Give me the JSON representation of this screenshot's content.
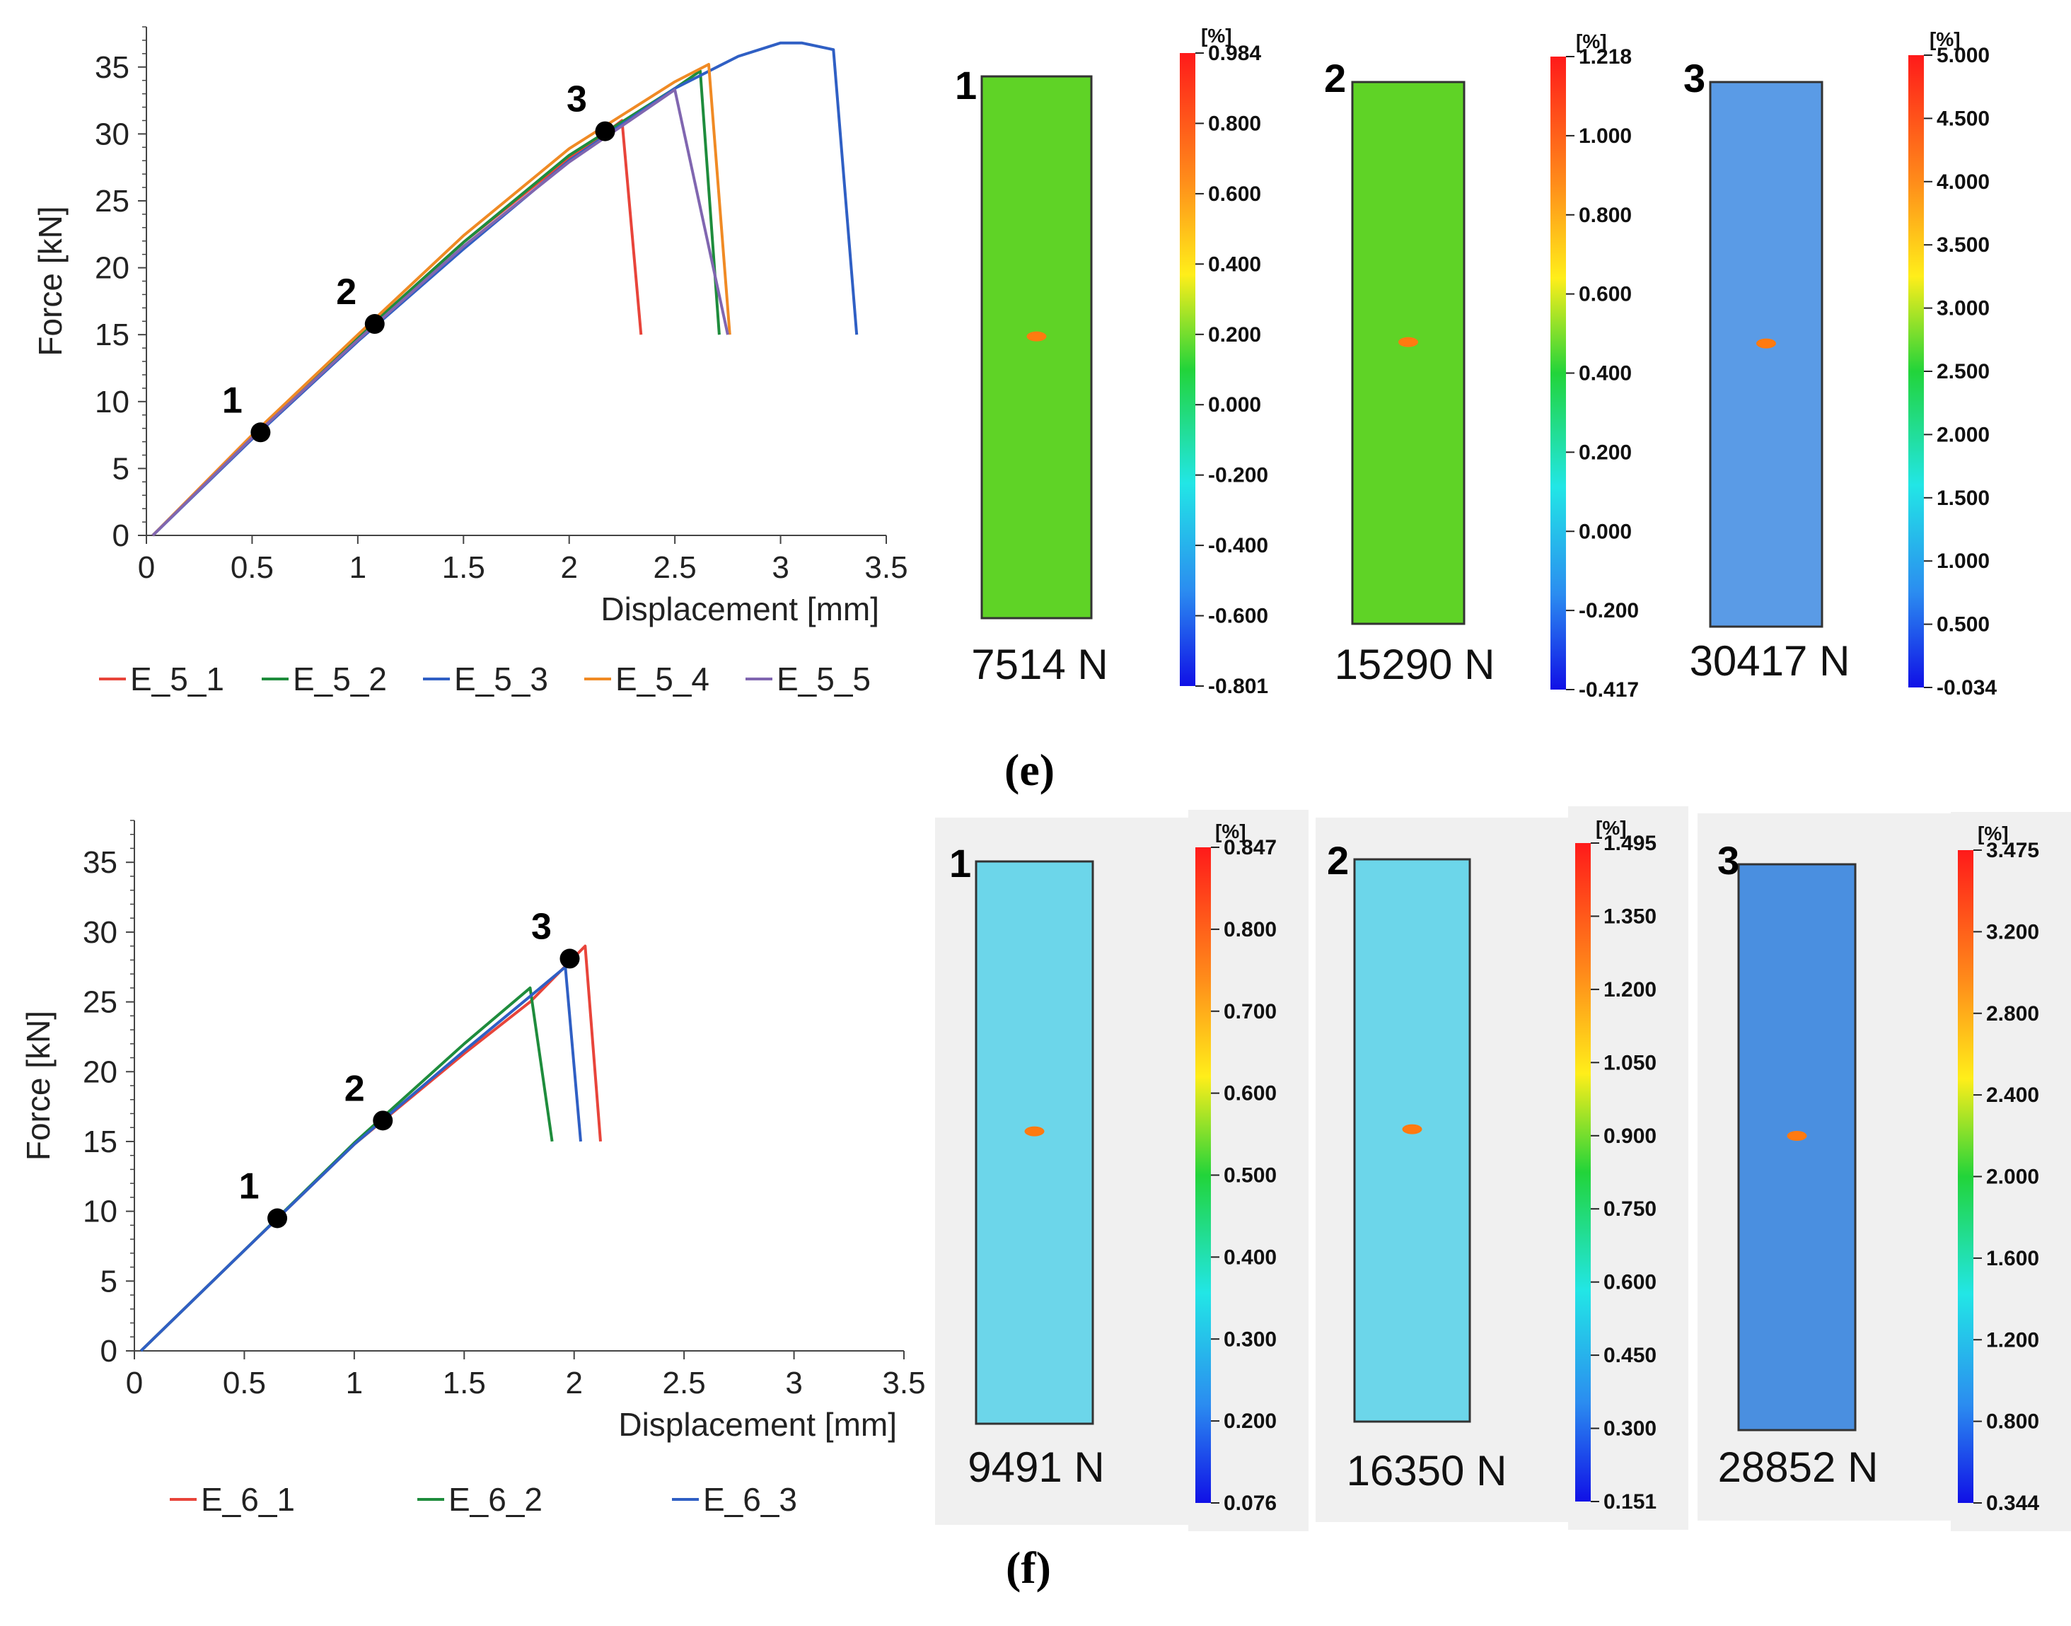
{
  "chart_data": [
    {
      "type": "line",
      "panel": "(e)",
      "ylabel": "Force [kN]",
      "xlabel": "Displacement [mm]",
      "xlim": [
        0,
        3.5
      ],
      "ylim": [
        0,
        38
      ],
      "xticks": [
        "0",
        "0.5",
        "1",
        "1.5",
        "2",
        "2.5",
        "3",
        "3.5"
      ],
      "yticks": [
        "0",
        "5",
        "10",
        "15",
        "20",
        "25",
        "30",
        "35"
      ],
      "series": [
        {
          "name": "E_5_1",
          "color": "#e8443a",
          "x": [
            0.03,
            0.5,
            1.0,
            1.5,
            2.0,
            2.2,
            2.25,
            2.34
          ],
          "y": [
            0,
            7.4,
            14.8,
            21.9,
            28.2,
            30.4,
            31.0,
            15.0
          ]
        },
        {
          "name": "E_5_2",
          "color": "#1e8c3c",
          "x": [
            0.03,
            0.5,
            1.0,
            1.5,
            2.0,
            2.5,
            2.62,
            2.71
          ],
          "y": [
            0,
            7.4,
            14.8,
            21.9,
            28.4,
            33.4,
            34.7,
            15.0
          ]
        },
        {
          "name": "E_5_3",
          "color": "#2f5fc4",
          "x": [
            0.03,
            0.5,
            1.0,
            1.5,
            2.0,
            2.5,
            2.8,
            3.0,
            3.1,
            3.25,
            3.36
          ],
          "y": [
            0,
            7.2,
            14.5,
            21.4,
            28.0,
            33.4,
            35.8,
            36.8,
            36.8,
            36.3,
            15.0
          ]
        },
        {
          "name": "E_5_4",
          "color": "#f08a24",
          "x": [
            0.03,
            0.5,
            1.0,
            1.5,
            2.0,
            2.5,
            2.66,
            2.76
          ],
          "y": [
            0,
            7.5,
            15.0,
            22.4,
            28.9,
            33.9,
            35.2,
            15.0
          ]
        },
        {
          "name": "E_5_5",
          "color": "#8066b0",
          "x": [
            0.03,
            0.5,
            1.0,
            1.5,
            2.0,
            2.5,
            2.75
          ],
          "y": [
            0,
            7.3,
            14.6,
            21.6,
            27.9,
            33.3,
            15.0
          ]
        }
      ],
      "annotations": [
        {
          "label": "1",
          "x": 0.54,
          "y": 7.7
        },
        {
          "label": "2",
          "x": 1.08,
          "y": 15.8
        },
        {
          "label": "3",
          "x": 2.17,
          "y": 30.2
        }
      ]
    },
    {
      "type": "line",
      "panel": "(f)",
      "ylabel": "Force [kN]",
      "xlabel": "Displacement [mm]",
      "xlim": [
        0,
        3.5
      ],
      "ylim": [
        0,
        38
      ],
      "xticks": [
        "0",
        "0.5",
        "1",
        "1.5",
        "2",
        "2.5",
        "3",
        "3.5"
      ],
      "yticks": [
        "0",
        "5",
        "10",
        "15",
        "20",
        "25",
        "30",
        "35"
      ],
      "series": [
        {
          "name": "E_6_1",
          "color": "#e8443a",
          "x": [
            0.03,
            0.5,
            1.0,
            1.5,
            1.8,
            2.05,
            2.12
          ],
          "y": [
            0,
            7.2,
            14.8,
            21.3,
            25.0,
            29.0,
            15.0
          ]
        },
        {
          "name": "E_6_2",
          "color": "#1e8c3c",
          "x": [
            0.03,
            0.5,
            1.0,
            1.5,
            1.8,
            1.9
          ],
          "y": [
            0,
            7.2,
            14.9,
            22.0,
            26.0,
            15.0
          ]
        },
        {
          "name": "E_6_3",
          "color": "#2f5fc4",
          "x": [
            0.03,
            0.5,
            1.0,
            1.5,
            1.8,
            1.96,
            2.03
          ],
          "y": [
            0,
            7.2,
            14.8,
            21.5,
            25.4,
            27.5,
            15.0
          ]
        }
      ],
      "annotations": [
        {
          "label": "1",
          "x": 0.65,
          "y": 9.5
        },
        {
          "label": "2",
          "x": 1.13,
          "y": 16.5
        },
        {
          "label": "3",
          "x": 1.98,
          "y": 28.1
        }
      ]
    }
  ],
  "strain_maps": {
    "e": [
      {
        "index": "1",
        "force": "7514 N",
        "unit": "[%]",
        "ticks": [
          "0.984",
          "0.800",
          "0.600",
          "0.400",
          "0.200",
          "0.000",
          "-0.200",
          "-0.400",
          "-0.600",
          "-0.801"
        ],
        "fill": "#5fd326",
        "bg": "none"
      },
      {
        "index": "2",
        "force": "15290 N",
        "unit": "[%]",
        "ticks": [
          "1.218",
          "1.000",
          "0.800",
          "0.600",
          "0.400",
          "0.200",
          "0.000",
          "-0.200",
          "-0.417"
        ],
        "fill": "#5fd326",
        "bg": "none"
      },
      {
        "index": "3",
        "force": "30417 N",
        "unit": "[%]",
        "ticks": [
          "5.000",
          "4.500",
          "4.000",
          "3.500",
          "3.000",
          "2.500",
          "2.000",
          "1.500",
          "1.000",
          "0.500",
          "-0.034"
        ],
        "fill": "#5a9be6",
        "bg": "none"
      }
    ],
    "f": [
      {
        "index": "1",
        "force": "9491 N",
        "unit": "[%]",
        "ticks": [
          "0.847",
          "0.800",
          "0.700",
          "0.600",
          "0.500",
          "0.400",
          "0.300",
          "0.200",
          "0.076"
        ],
        "fill": "#6cd6ea",
        "bg": "#f0f0f0"
      },
      {
        "index": "2",
        "force": "16350 N",
        "unit": "[%]",
        "ticks": [
          "1.495",
          "1.350",
          "1.200",
          "1.050",
          "0.900",
          "0.750",
          "0.600",
          "0.450",
          "0.300",
          "0.151"
        ],
        "fill": "#6cd6ea",
        "bg": "#f0f0f0"
      },
      {
        "index": "3",
        "force": "28852 N",
        "unit": "[%]",
        "ticks": [
          "3.475",
          "3.200",
          "2.800",
          "2.400",
          "2.000",
          "1.600",
          "1.200",
          "0.800",
          "0.344"
        ],
        "fill": "#4a8fe0",
        "bg": "#f0f0f0"
      }
    ]
  },
  "captions": {
    "e": "(e)",
    "f": "(f)"
  }
}
